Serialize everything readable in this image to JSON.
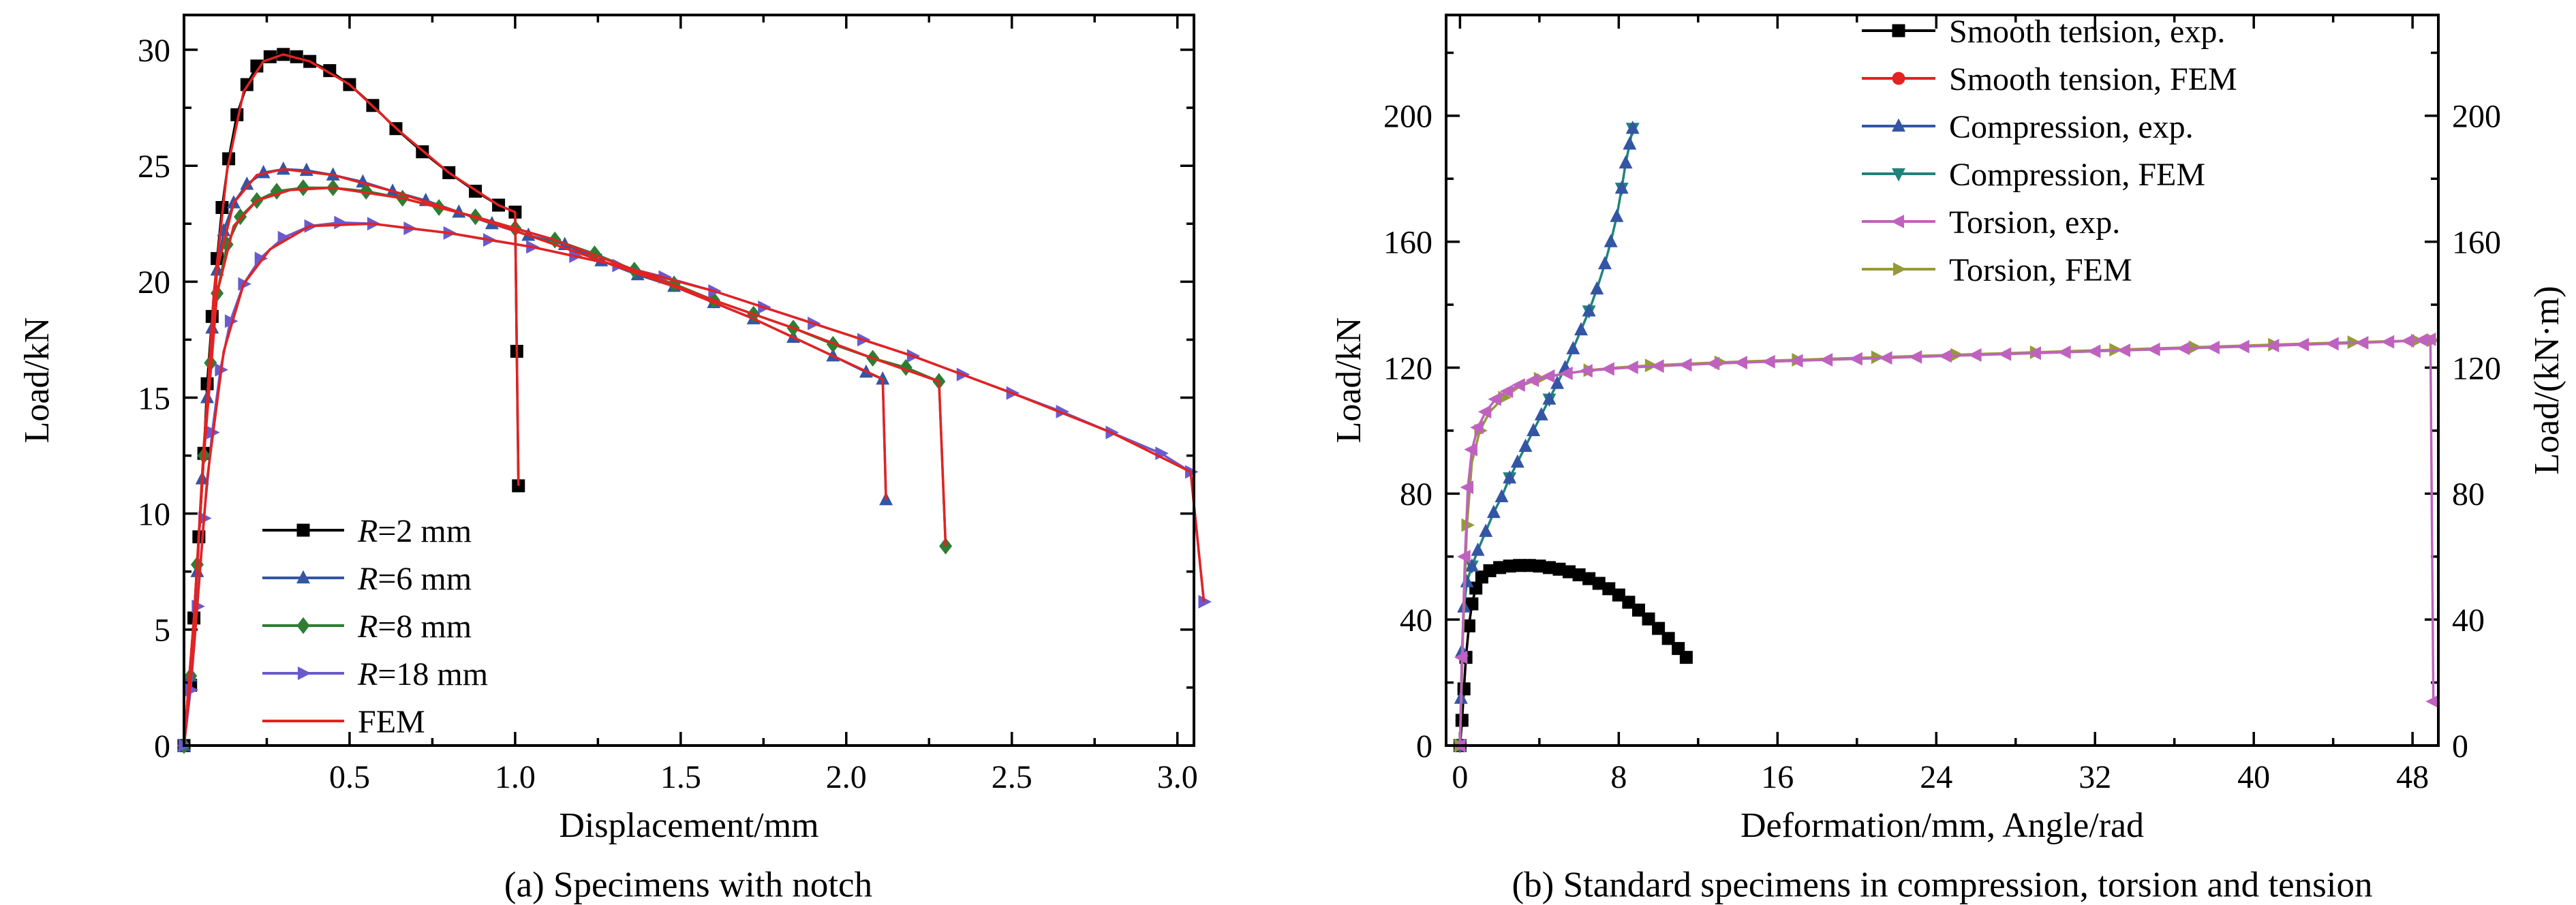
{
  "figure": {
    "background": "#ffffff",
    "axis_color": "#000000"
  },
  "chart_data": [
    {
      "id": "a",
      "type": "line",
      "caption": "(a) Specimens with notch",
      "xlabel": "Displacement/mm",
      "ylabel": "Load/kN",
      "xlim": [
        0,
        3.05
      ],
      "ylim": [
        0,
        31.5
      ],
      "xticks": [
        0.5,
        1.0,
        1.5,
        2.0,
        2.5,
        3.0
      ],
      "xtick_labels": [
        "0.5",
        "1.0",
        "1.5",
        "2.0",
        "2.5",
        "3.0"
      ],
      "xminor": [
        0.25,
        0.75,
        1.25,
        1.75,
        2.25,
        2.75
      ],
      "yticks": [
        0,
        5,
        10,
        15,
        20,
        25,
        30
      ],
      "ytick_labels": [
        "0",
        "5",
        "10",
        "15",
        "20",
        "25",
        "30"
      ],
      "yminor": [
        2.5,
        7.5,
        12.5,
        17.5,
        22.5,
        27.5
      ],
      "grid": false,
      "legend_position": "lower-left-inside",
      "series": [
        {
          "name": "R=2 mm exp",
          "label": "R=2 mm",
          "color": "#000000",
          "marker": "square",
          "z": 1,
          "x": [
            0,
            0.02,
            0.03,
            0.045,
            0.06,
            0.07,
            0.085,
            0.1,
            0.115,
            0.135,
            0.16,
            0.19,
            0.22,
            0.26,
            0.3,
            0.34,
            0.38,
            0.44,
            0.5,
            0.57,
            0.64,
            0.72,
            0.8,
            0.88,
            0.95,
            1.0,
            1.005,
            1.01
          ],
          "y": [
            0,
            2.6,
            5.5,
            9,
            12.6,
            15.6,
            18.5,
            21,
            23.2,
            25.3,
            27.2,
            28.5,
            29.3,
            29.7,
            29.8,
            29.7,
            29.5,
            29.1,
            28.5,
            27.6,
            26.6,
            25.6,
            24.7,
            23.9,
            23.3,
            23,
            17,
            11.2
          ]
        },
        {
          "name": "R=6 mm exp",
          "label": "R=6 mm",
          "color": "#3355a4",
          "marker": "triangle-up",
          "z": 2,
          "x": [
            0,
            0.02,
            0.04,
            0.055,
            0.07,
            0.085,
            0.1,
            0.12,
            0.15,
            0.19,
            0.24,
            0.3,
            0.37,
            0.45,
            0.54,
            0.63,
            0.73,
            0.83,
            0.93,
            1.04,
            1.15,
            1.26,
            1.37,
            1.48,
            1.6,
            1.72,
            1.84,
            1.96,
            2.06,
            2.11,
            2.12
          ],
          "y": [
            0,
            3,
            7.5,
            11.5,
            15,
            18,
            20.5,
            22.2,
            23.4,
            24.2,
            24.7,
            24.85,
            24.8,
            24.6,
            24.3,
            23.9,
            23.5,
            23,
            22.5,
            22,
            21.6,
            20.9,
            20.3,
            19.8,
            19.1,
            18.4,
            17.6,
            16.8,
            16.1,
            15.8,
            10.6
          ]
        },
        {
          "name": "R=8 mm exp",
          "label": "R=8 mm",
          "color": "#2e7d32",
          "marker": "diamond",
          "z": 3,
          "x": [
            0,
            0.02,
            0.04,
            0.06,
            0.08,
            0.1,
            0.13,
            0.17,
            0.22,
            0.28,
            0.36,
            0.45,
            0.55,
            0.66,
            0.77,
            0.88,
            1.0,
            1.12,
            1.24,
            1.36,
            1.48,
            1.6,
            1.72,
            1.84,
            1.96,
            2.08,
            2.18,
            2.28,
            2.3
          ],
          "y": [
            0,
            3,
            7.8,
            12.5,
            16.5,
            19.5,
            21.6,
            22.8,
            23.5,
            23.9,
            24.05,
            24.05,
            23.9,
            23.6,
            23.2,
            22.8,
            22.3,
            21.8,
            21.2,
            20.5,
            19.9,
            19.2,
            18.6,
            18,
            17.3,
            16.7,
            16.3,
            15.7,
            8.6
          ]
        },
        {
          "name": "R=18 mm exp",
          "label": "R=18 mm",
          "color": "#6a5acd",
          "marker": "triangle-right",
          "z": 4,
          "x": [
            0,
            0.02,
            0.04,
            0.06,
            0.085,
            0.11,
            0.14,
            0.18,
            0.23,
            0.3,
            0.38,
            0.47,
            0.57,
            0.68,
            0.8,
            0.92,
            1.05,
            1.18,
            1.31,
            1.45,
            1.6,
            1.75,
            1.9,
            2.05,
            2.2,
            2.35,
            2.5,
            2.65,
            2.8,
            2.95,
            3.04,
            3.08
          ],
          "y": [
            0,
            2.4,
            6,
            9.8,
            13.5,
            16.2,
            18.3,
            19.9,
            21,
            21.9,
            22.4,
            22.55,
            22.5,
            22.3,
            22.1,
            21.8,
            21.5,
            21.1,
            20.7,
            20.2,
            19.6,
            18.9,
            18.2,
            17.5,
            16.8,
            16,
            15.2,
            14.4,
            13.5,
            12.6,
            11.8,
            6.2
          ]
        },
        {
          "name": "FEM R=2",
          "label": "FEM",
          "color": "#e32222",
          "marker": null,
          "z": 5,
          "x": [
            0,
            0.03,
            0.06,
            0.09,
            0.13,
            0.18,
            0.24,
            0.3,
            0.38,
            0.5,
            0.65,
            0.8,
            0.95,
            1.0,
            1.01
          ],
          "y": [
            0,
            5.5,
            12.6,
            19.5,
            24.8,
            28.2,
            29.5,
            29.8,
            29.5,
            28.5,
            26.5,
            24.7,
            23.3,
            23,
            11.2
          ]
        },
        {
          "name": "FEM R=6",
          "label": null,
          "color": "#e32222",
          "marker": null,
          "z": 6,
          "x": [
            0,
            0.03,
            0.06,
            0.1,
            0.15,
            0.22,
            0.3,
            0.45,
            0.63,
            0.83,
            1.04,
            1.26,
            1.48,
            1.72,
            1.96,
            2.11,
            2.12
          ],
          "y": [
            0,
            5.5,
            13,
            20.5,
            23.4,
            24.6,
            24.85,
            24.6,
            23.9,
            23,
            22,
            20.9,
            19.8,
            18.4,
            16.8,
            15.8,
            10.6
          ]
        },
        {
          "name": "FEM R=8",
          "label": null,
          "color": "#e32222",
          "marker": null,
          "z": 7,
          "x": [
            0,
            0.03,
            0.06,
            0.1,
            0.15,
            0.22,
            0.32,
            0.45,
            0.66,
            0.88,
            1.12,
            1.36,
            1.6,
            1.84,
            2.08,
            2.28,
            2.3
          ],
          "y": [
            0,
            5.5,
            12.5,
            19.5,
            22.4,
            23.5,
            23.95,
            24.05,
            23.6,
            22.8,
            21.8,
            20.5,
            19.2,
            18,
            16.7,
            15.7,
            8.6
          ]
        },
        {
          "name": "FEM R=18",
          "label": null,
          "color": "#e32222",
          "marker": null,
          "z": 8,
          "x": [
            0,
            0.03,
            0.07,
            0.12,
            0.18,
            0.26,
            0.38,
            0.57,
            0.8,
            1.05,
            1.31,
            1.6,
            1.9,
            2.2,
            2.5,
            2.8,
            3.04,
            3.08
          ],
          "y": [
            0,
            4.2,
            11.5,
            17,
            19.9,
            21.4,
            22.4,
            22.5,
            22.1,
            21.5,
            20.7,
            19.6,
            18.2,
            16.8,
            15.2,
            13.5,
            11.8,
            6.2
          ]
        }
      ]
    },
    {
      "id": "b",
      "type": "line",
      "caption": "(b) Standard specimens in compression, torsion and tension",
      "xlabel": "Deformation/mm, Angle/rad",
      "ylabel": "Load/kN",
      "ylabel_right": "Load/(kN·m)",
      "xlim": [
        -0.7,
        49.3
      ],
      "ylim": [
        0,
        232
      ],
      "xticks": [
        0,
        8,
        16,
        24,
        32,
        40,
        48
      ],
      "xtick_labels": [
        "0",
        "8",
        "16",
        "24",
        "32",
        "40",
        "48"
      ],
      "xminor": [
        4,
        12,
        20,
        28,
        36,
        44
      ],
      "yticks": [
        0,
        40,
        80,
        120,
        160,
        200
      ],
      "ytick_labels": [
        "0",
        "40",
        "80",
        "120",
        "160",
        "200"
      ],
      "yminor": [
        20,
        60,
        100,
        140,
        180,
        220
      ],
      "grid": false,
      "legend_position": "top-right-inside",
      "series": [
        {
          "name": "Smooth tension, exp.",
          "label": "Smooth tension, exp.",
          "color": "#000000",
          "marker": "square",
          "z": 2,
          "x": [
            0,
            0.1,
            0.2,
            0.3,
            0.45,
            0.6,
            0.8,
            1.1,
            1.5,
            2,
            2.5,
            3,
            3.5,
            4,
            4.5,
            5,
            5.5,
            6,
            6.5,
            7,
            7.5,
            8,
            8.5,
            9,
            9.5,
            10,
            10.5,
            11,
            11.4
          ],
          "y": [
            0,
            8,
            18,
            28,
            38,
            45,
            50,
            53.5,
            55.5,
            56.5,
            57,
            57.2,
            57.2,
            57,
            56.5,
            56,
            55.2,
            54.2,
            53,
            51.5,
            49.8,
            47.8,
            45.5,
            43,
            40.2,
            37.2,
            34,
            30.8,
            28
          ]
        },
        {
          "name": "Smooth tension, FEM",
          "label": "Smooth tension, FEM",
          "color": "#e32222",
          "marker": "circle",
          "z": 1,
          "x": [
            0,
            0.1,
            0.2,
            0.3,
            0.45,
            0.6,
            0.8,
            1.1,
            1.5,
            2,
            2.5,
            3,
            3.5,
            4,
            4.5,
            5,
            5.5,
            6,
            6.5,
            7,
            7.5,
            8,
            8.5,
            9,
            9.5,
            10,
            10.5,
            11,
            11.4
          ],
          "y": [
            0,
            8,
            18,
            28,
            38,
            45,
            50,
            53.5,
            55.5,
            56.5,
            57,
            57.2,
            57.2,
            57,
            56.5,
            56,
            55.2,
            54.2,
            53,
            51.5,
            49.8,
            47.8,
            45.5,
            43,
            40.2,
            37.2,
            34,
            30.8,
            28
          ]
        },
        {
          "name": "Compression, exp.",
          "label": "Compression, exp.",
          "color": "#3355a4",
          "marker": "triangle-up",
          "line": false,
          "z": 4,
          "x": [
            0,
            0.05,
            0.1,
            0.2,
            0.35,
            0.6,
            0.9,
            1.3,
            1.7,
            2.1,
            2.5,
            2.9,
            3.3,
            3.7,
            4.1,
            4.5,
            4.9,
            5.3,
            5.7,
            6.1,
            6.5,
            6.9,
            7.3,
            7.6,
            7.9,
            8.15,
            8.35,
            8.55,
            8.7
          ],
          "y": [
            0,
            15,
            30,
            44,
            52,
            57,
            62,
            68,
            74,
            79,
            85,
            90,
            95,
            100,
            105,
            110,
            115,
            120,
            126,
            132,
            138,
            145,
            153,
            160,
            168,
            177,
            185,
            191,
            196
          ]
        },
        {
          "name": "Compression, FEM",
          "label": "Compression, FEM",
          "color": "#1f837c",
          "marker": "triangle-down",
          "markevery": 5,
          "z": 3,
          "x": [
            0,
            0.05,
            0.1,
            0.2,
            0.35,
            0.6,
            0.9,
            1.3,
            1.7,
            2.1,
            2.5,
            2.9,
            3.3,
            3.7,
            4.1,
            4.5,
            4.9,
            5.3,
            5.7,
            6.1,
            6.5,
            6.9,
            7.3,
            7.6,
            7.9,
            8.15,
            8.35,
            8.55,
            8.7
          ],
          "y": [
            0,
            15,
            30,
            44,
            52,
            57,
            62,
            68,
            74,
            79,
            85,
            90,
            95,
            100,
            105,
            110,
            115,
            120,
            126,
            132,
            138,
            145,
            153,
            160,
            168,
            177,
            185,
            191,
            196
          ]
        },
        {
          "name": "Torsion, exp.",
          "label": "Torsion, exp.",
          "color": "#bf62bf",
          "marker": "triangle-left",
          "z": 6,
          "x": [
            0,
            0.1,
            0.25,
            0.4,
            0.6,
            0.9,
            1.3,
            1.8,
            2.4,
            3,
            3.7,
            4.5,
            5.4,
            6.4,
            7.5,
            8.7,
            10,
            11.4,
            12.8,
            14.2,
            15.6,
            17,
            18.5,
            20,
            21.5,
            23,
            24.5,
            26,
            27.5,
            29,
            30.5,
            32,
            33.5,
            35,
            36.5,
            38,
            39.5,
            41,
            42.5,
            44,
            45.5,
            46.8,
            47.8,
            48.5,
            48.9,
            49.05
          ],
          "y": [
            0,
            28,
            60,
            82,
            94,
            101,
            106,
            110,
            112.5,
            114.5,
            116,
            117.3,
            118.2,
            119,
            119.6,
            120.1,
            120.5,
            120.9,
            121.3,
            121.6,
            121.9,
            122.2,
            122.5,
            122.8,
            123.1,
            123.4,
            123.7,
            124,
            124.3,
            124.6,
            124.9,
            125.2,
            125.5,
            125.8,
            126.1,
            126.4,
            126.7,
            127,
            127.3,
            127.6,
            127.9,
            128.2,
            128.5,
            128.8,
            129,
            14
          ]
        },
        {
          "name": "Torsion, FEM",
          "label": "Torsion, FEM",
          "color": "#949b36",
          "marker": "triangle-right",
          "markevery": 2,
          "z": 5,
          "x": [
            0,
            0.15,
            0.35,
            0.6,
            1,
            1.5,
            2.2,
            3,
            4,
            5.2,
            6.5,
            8,
            9.6,
            11.3,
            13.1,
            15,
            17,
            19,
            21,
            23,
            25,
            27,
            29,
            31,
            33,
            35,
            37,
            39,
            41,
            43,
            45,
            46.8,
            48.2,
            49
          ],
          "y": [
            0,
            35,
            70,
            90,
            100,
            106,
            110.5,
            114,
            116.5,
            118,
            119.2,
            120.1,
            120.7,
            121.2,
            121.7,
            122.1,
            122.5,
            122.9,
            123.3,
            123.7,
            124.1,
            124.5,
            124.9,
            125.3,
            125.7,
            126.1,
            126.5,
            126.9,
            127.3,
            127.7,
            128.1,
            128.4,
            128.6,
            128.7
          ]
        }
      ]
    }
  ]
}
